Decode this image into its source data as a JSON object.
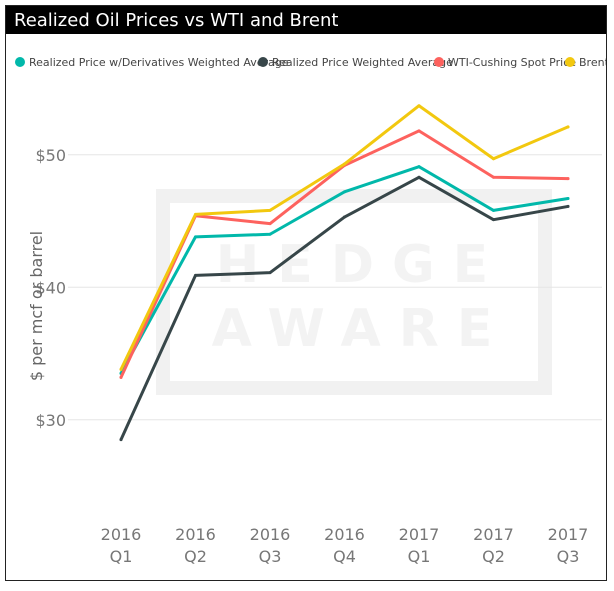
{
  "chart_data": {
    "type": "line",
    "title": "Realized Oil Prices vs WTI and Brent",
    "xlabel": "",
    "ylabel": "$ per mcf or barrel",
    "categories": [
      [
        "2016",
        "Q1"
      ],
      [
        "2016",
        "Q2"
      ],
      [
        "2016",
        "Q3"
      ],
      [
        "2016",
        "Q4"
      ],
      [
        "2017",
        "Q1"
      ],
      [
        "2017",
        "Q2"
      ],
      [
        "2017",
        "Q3"
      ]
    ],
    "ylim": [
      25,
      57
    ],
    "yticks": [
      {
        "value": 30,
        "label": "$30"
      },
      {
        "value": 40,
        "label": "$40"
      },
      {
        "value": 50,
        "label": "$50"
      }
    ],
    "grid": true,
    "legend_position": "top",
    "watermark": "HEDGE AWARE",
    "series": [
      {
        "name": "Realized Price w/Derivatives Weighted Average",
        "color": "#01B8AA",
        "values": [
          33.5,
          43.8,
          44.0,
          47.2,
          49.1,
          45.8,
          46.7
        ]
      },
      {
        "name": "Realized Price Weighted Average",
        "color": "#374649",
        "values": [
          28.5,
          40.9,
          41.1,
          45.3,
          48.3,
          45.1,
          46.1
        ]
      },
      {
        "name": "WTI-Cushing Spot Price",
        "color": "#FD625E",
        "values": [
          33.2,
          45.4,
          44.8,
          49.2,
          51.8,
          48.3,
          48.2
        ]
      },
      {
        "name": "Brent",
        "color": "#F2C80F",
        "values": [
          33.8,
          45.5,
          45.8,
          49.3,
          53.7,
          49.7,
          52.1
        ]
      }
    ]
  }
}
